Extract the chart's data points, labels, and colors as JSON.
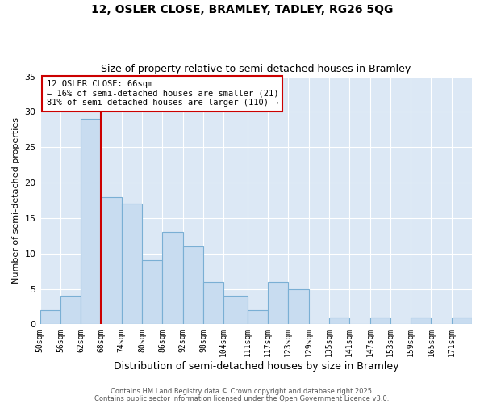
{
  "title1": "12, OSLER CLOSE, BRAMLEY, TADLEY, RG26 5QG",
  "title2": "Size of property relative to semi-detached houses in Bramley",
  "xlabel": "Distribution of semi-detached houses by size in Bramley",
  "ylabel": "Number of semi-detached properties",
  "bar_color": "#c8dcf0",
  "bar_edge_color": "#7aafd4",
  "background_color": "#dce8f5",
  "annotation_line1": "12 OSLER CLOSE: 66sqm",
  "annotation_line2": "← 16% of semi-detached houses are smaller (21)",
  "annotation_line3": "81% of semi-detached houses are larger (110) →",
  "vline_color": "#cc0000",
  "categories": [
    "50sqm",
    "56sqm",
    "62sqm",
    "68sqm",
    "74sqm",
    "80sqm",
    "86sqm",
    "92sqm",
    "98sqm",
    "104sqm",
    "111sqm",
    "117sqm",
    "123sqm",
    "129sqm",
    "135sqm",
    "141sqm",
    "147sqm",
    "153sqm",
    "159sqm",
    "165sqm",
    "171sqm"
  ],
  "bin_edges": [
    50,
    56,
    62,
    68,
    74,
    80,
    86,
    92,
    98,
    104,
    111,
    117,
    123,
    129,
    135,
    141,
    147,
    153,
    159,
    165,
    171,
    177
  ],
  "values": [
    2,
    4,
    29,
    18,
    17,
    9,
    13,
    11,
    6,
    4,
    2,
    6,
    5,
    0,
    1,
    0,
    1,
    0,
    1,
    0,
    1
  ],
  "ylim": [
    0,
    35
  ],
  "yticks": [
    0,
    5,
    10,
    15,
    20,
    25,
    30,
    35
  ],
  "footer1": "Contains HM Land Registry data © Crown copyright and database right 2025.",
  "footer2": "Contains public sector information licensed under the Open Government Licence v3.0."
}
